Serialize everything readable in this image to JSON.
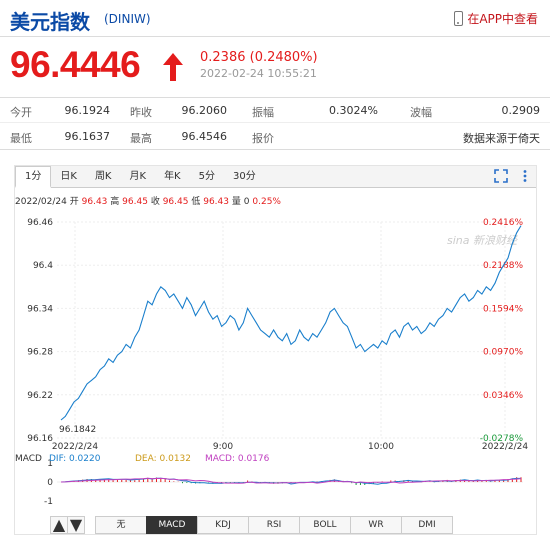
{
  "header": {
    "title": "美元指数",
    "symbol": "(DINIW)",
    "app_link": "在APP中查看"
  },
  "quote": {
    "price": "96.4446",
    "change": "0.2386 (0.2480%)",
    "timestamp": "2022-02-24 10:55:21"
  },
  "stats": {
    "open_label": "今开",
    "open": "96.1924",
    "prev_close_label": "昨收",
    "prev_close": "96.2060",
    "amplitude_label": "振幅",
    "amplitude": "0.3024%",
    "wave_label": "波幅",
    "wave": "0.2909",
    "low_label": "最低",
    "low": "96.1637",
    "high_label": "最高",
    "high": "96.4546",
    "quote_label": "报价",
    "quote_source": "数据来源于倚天"
  },
  "tabs": [
    "1分",
    "日K",
    "周K",
    "月K",
    "年K",
    "5分",
    "30分"
  ],
  "info_line": {
    "date": "2022/02/24",
    "open_label": "开",
    "open": "96.43",
    "high_label": "高",
    "high": "96.45",
    "close_label": "收",
    "close": "96.45",
    "low_label": "低",
    "low": "96.43",
    "vol_label": "量",
    "vol": "0",
    "pct": "0.25%"
  },
  "watermark": "sina 新浪财经",
  "colors": {
    "up": "#e41c1c",
    "line": "#1a7fcc",
    "title": "#0b4aa6"
  },
  "chart_data": {
    "type": "line",
    "y_ticks_left": [
      "96.46",
      "96.4",
      "96.34",
      "96.28",
      "96.22",
      "96.16"
    ],
    "y_ticks_right": [
      "0.2416%",
      "0.2188%",
      "0.1594%",
      "0.0970%",
      "0.0346%",
      "-0.0278%"
    ],
    "x_ticks": [
      "2022/2/24",
      "9:00",
      "10:00",
      "2022/2/24"
    ],
    "ylim": [
      96.16,
      96.46
    ],
    "low_annotation": "96.1842",
    "values": [
      96.185,
      96.19,
      96.2,
      96.21,
      96.215,
      96.225,
      96.235,
      96.24,
      96.245,
      96.255,
      96.26,
      96.27,
      96.265,
      96.275,
      96.28,
      96.29,
      96.285,
      96.3,
      96.31,
      96.33,
      96.35,
      96.345,
      96.36,
      96.37,
      96.365,
      96.355,
      96.36,
      96.35,
      96.34,
      96.355,
      96.345,
      96.33,
      96.34,
      96.35,
      96.335,
      96.325,
      96.33,
      96.315,
      96.32,
      96.33,
      96.325,
      96.31,
      96.32,
      96.34,
      96.33,
      96.32,
      96.31,
      96.305,
      96.3,
      96.31,
      96.3,
      96.295,
      96.305,
      96.29,
      96.295,
      96.31,
      96.3,
      96.295,
      96.305,
      96.3,
      96.31,
      96.32,
      96.335,
      96.34,
      96.33,
      96.32,
      96.315,
      96.3,
      96.285,
      96.29,
      96.28,
      96.285,
      96.29,
      96.285,
      96.295,
      96.29,
      96.305,
      96.31,
      96.3,
      96.315,
      96.32,
      96.31,
      96.315,
      96.305,
      96.31,
      96.32,
      96.315,
      96.325,
      96.33,
      96.34,
      96.335,
      96.345,
      96.355,
      96.36,
      96.35,
      96.355,
      96.365,
      96.36,
      96.37,
      96.365,
      96.375,
      96.39,
      96.4,
      96.41,
      96.43,
      96.445,
      96.455
    ]
  },
  "macd": {
    "label": "MACD",
    "dif_label": "DIF:",
    "dif": "0.0220",
    "dea_label": "DEA:",
    "dea": "0.0132",
    "macd_label": "MACD:",
    "macd": "0.0176",
    "y_ticks": [
      "1",
      "0",
      "-1"
    ]
  },
  "indicator_tabs": [
    "无",
    "MACD",
    "KDJ",
    "RSI",
    "BOLL",
    "WR",
    "DMI"
  ]
}
